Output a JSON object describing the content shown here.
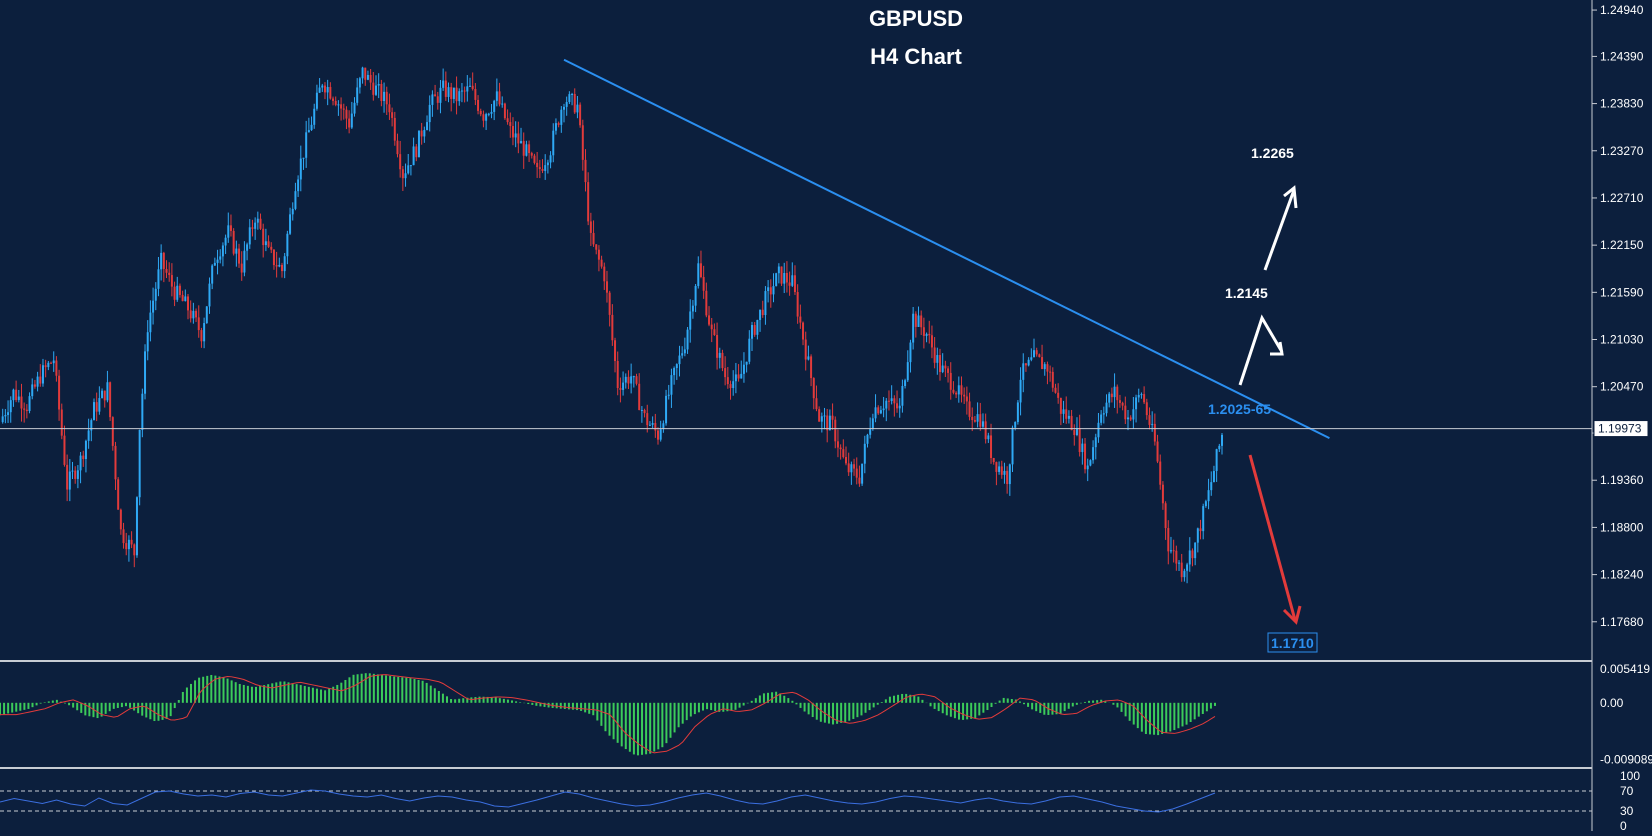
{
  "chart_data": {
    "type": "candlestick",
    "title": "GBPUSD",
    "subtitle": "H4 Chart",
    "price_axis": {
      "ticks": [
        "1.24940",
        "1.24390",
        "1.23830",
        "1.23270",
        "1.22710",
        "1.22150",
        "1.21590",
        "1.21030",
        "1.20470",
        "1.19920",
        "1.19360",
        "1.18800",
        "1.18240",
        "1.17680"
      ],
      "range": [
        1.1744,
        1.25
      ],
      "current_price": "1.19973"
    },
    "candles_close_path": [
      [
        0,
        1.2005
      ],
      [
        5,
        1.204
      ],
      [
        10,
        1.2025
      ],
      [
        15,
        1.206
      ],
      [
        20,
        1.208
      ],
      [
        25,
        1.193
      ],
      [
        30,
        1.196
      ],
      [
        35,
        1.202
      ],
      [
        40,
        1.2045
      ],
      [
        45,
        1.1875
      ],
      [
        50,
        1.185
      ],
      [
        52,
        1.2
      ],
      [
        55,
        1.212
      ],
      [
        60,
        1.2195
      ],
      [
        65,
        1.216
      ],
      [
        70,
        1.214
      ],
      [
        75,
        1.211
      ],
      [
        80,
        1.22
      ],
      [
        85,
        1.223
      ],
      [
        90,
        1.219
      ],
      [
        95,
        1.225
      ],
      [
        100,
        1.2205
      ],
      [
        105,
        1.2185
      ],
      [
        110,
        1.229
      ],
      [
        115,
        1.235
      ],
      [
        120,
        1.241
      ],
      [
        125,
        1.239
      ],
      [
        130,
        1.236
      ],
      [
        135,
        1.242
      ],
      [
        140,
        1.24
      ],
      [
        145,
        1.238
      ],
      [
        150,
        1.23
      ],
      [
        155,
        1.233
      ],
      [
        160,
        1.238
      ],
      [
        165,
        1.24
      ],
      [
        170,
        1.239
      ],
      [
        175,
        1.24
      ],
      [
        180,
        1.237
      ],
      [
        185,
        1.239
      ],
      [
        190,
        1.235
      ],
      [
        195,
        1.233
      ],
      [
        200,
        1.23
      ],
      [
        205,
        1.233
      ],
      [
        210,
        1.239
      ],
      [
        215,
        1.238
      ],
      [
        220,
        1.222
      ],
      [
        225,
        1.218
      ],
      [
        230,
        1.205
      ],
      [
        235,
        1.206
      ],
      [
        240,
        1.201
      ],
      [
        245,
        1.199
      ],
      [
        250,
        1.205
      ],
      [
        255,
        1.21
      ],
      [
        260,
        1.219
      ],
      [
        265,
        1.211
      ],
      [
        270,
        1.206
      ],
      [
        275,
        1.205
      ],
      [
        280,
        1.211
      ],
      [
        285,
        1.215
      ],
      [
        290,
        1.218
      ],
      [
        295,
        1.217
      ],
      [
        300,
        1.209
      ],
      [
        305,
        1.201
      ],
      [
        310,
        1.2
      ],
      [
        315,
        1.195
      ],
      [
        320,
        1.194
      ],
      [
        325,
        1.202
      ],
      [
        330,
        1.203
      ],
      [
        335,
        1.202
      ],
      [
        340,
        1.213
      ],
      [
        345,
        1.211
      ],
      [
        350,
        1.207
      ],
      [
        355,
        1.205
      ],
      [
        360,
        1.202
      ],
      [
        365,
        1.201
      ],
      [
        370,
        1.196
      ],
      [
        375,
        1.194
      ],
      [
        380,
        1.206
      ],
      [
        385,
        1.208
      ],
      [
        390,
        1.207
      ],
      [
        395,
        1.202
      ],
      [
        400,
        1.2
      ],
      [
        405,
        1.195
      ],
      [
        410,
        1.202
      ],
      [
        415,
        1.204
      ],
      [
        420,
        1.201
      ],
      [
        425,
        1.204
      ],
      [
        430,
        1.198
      ],
      [
        435,
        1.186
      ],
      [
        440,
        1.183
      ],
      [
        445,
        1.186
      ],
      [
        450,
        1.192
      ],
      [
        455,
        1.199
      ]
    ],
    "trendline": {
      "from": [
        210,
        1.2435
      ],
      "to": [
        495,
        1.1986
      ]
    },
    "annotations": [
      {
        "text": "1.2265",
        "color": "#ffffff"
      },
      {
        "text": "1.2145",
        "color": "#ffffff"
      },
      {
        "text": "1.2025-65",
        "color": "#2b8ff0"
      },
      {
        "text": "1.1710",
        "color": "#2b8ff0"
      }
    ],
    "macd_panel": {
      "ticks": [
        "0.005419",
        "0.00",
        "-0.009089"
      ],
      "range": [
        -0.0092,
        0.0056
      ],
      "histogram_color": "#3ccb5a",
      "signal_color": "#e23b3b",
      "histogram": [
        -0.002,
        -0.0015,
        -0.001,
        0.0,
        0.0005,
        -0.0005,
        -0.002,
        -0.0025,
        -0.001,
        -0.0005,
        -0.002,
        -0.003,
        -0.0025,
        0.002,
        0.004,
        0.0045,
        0.004,
        0.003,
        0.0025,
        0.003,
        0.0035,
        0.003,
        0.0025,
        0.002,
        0.003,
        0.0045,
        0.0048,
        0.0045,
        0.0042,
        0.004,
        0.0035,
        0.002,
        0.0005,
        0.0008,
        0.001,
        0.0009,
        0.0005,
        0.0,
        -0.0005,
        -0.0008,
        -0.001,
        -0.0012,
        -0.002,
        -0.005,
        -0.007,
        -0.0085,
        -0.0082,
        -0.007,
        -0.004,
        -0.002,
        -0.001,
        -0.0015,
        -0.0012,
        0.0,
        0.0015,
        0.0018,
        0.0005,
        -0.0015,
        -0.003,
        -0.0035,
        -0.003,
        -0.002,
        -0.0005,
        0.001,
        0.0015,
        0.001,
        -0.0008,
        -0.002,
        -0.0028,
        -0.0025,
        -0.001,
        0.0008,
        0.0005,
        -0.001,
        -0.002,
        -0.0018,
        -0.0005,
        0.0003,
        0.0005,
        -0.0005,
        -0.003,
        -0.005,
        -0.0052,
        -0.0045,
        -0.0035,
        -0.002,
        -0.0005
      ]
    },
    "rsi_panel": {
      "ticks": [
        "100",
        "70",
        "30",
        "0"
      ],
      "levels": [
        70,
        30
      ],
      "line_color": "#3b6fe0",
      "values": [
        48,
        55,
        50,
        45,
        52,
        44,
        40,
        56,
        45,
        42,
        55,
        68,
        70,
        64,
        60,
        62,
        58,
        65,
        68,
        62,
        60,
        66,
        72,
        70,
        64,
        60,
        58,
        62,
        55,
        50,
        56,
        60,
        58,
        52,
        48,
        40,
        38,
        45,
        52,
        60,
        68,
        64,
        56,
        50,
        44,
        40,
        42,
        48,
        56,
        62,
        66,
        60,
        52,
        46,
        44,
        50,
        58,
        62,
        56,
        50,
        46,
        44,
        48,
        55,
        60,
        58,
        54,
        50,
        46,
        52,
        56,
        50,
        46,
        44,
        50,
        58,
        60,
        54,
        48,
        40,
        35,
        30,
        28,
        34,
        44,
        55,
        66
      ]
    }
  }
}
